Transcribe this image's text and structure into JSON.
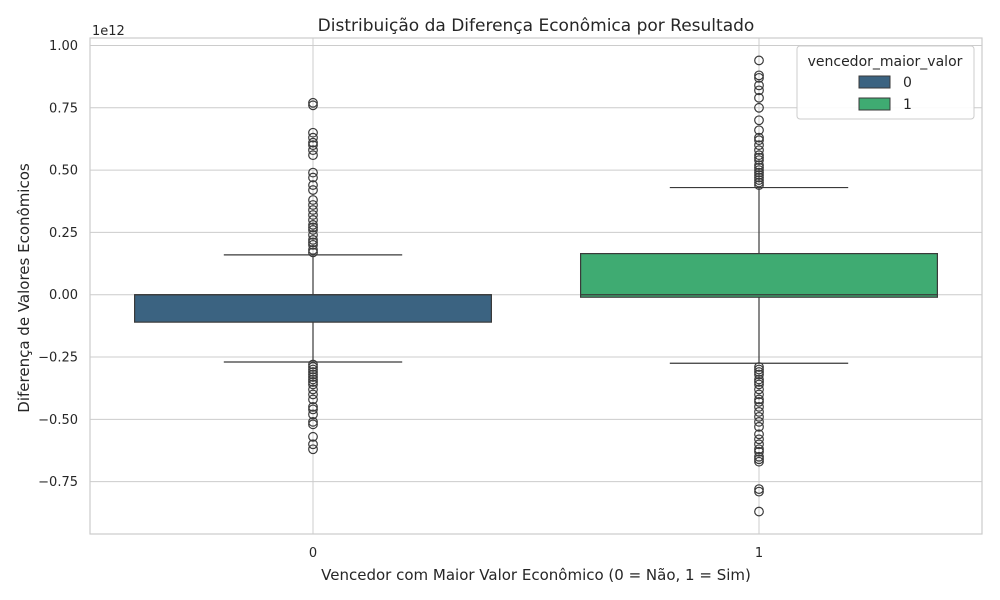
{
  "chart_data": {
    "type": "boxplot",
    "title": "Distribuição da Diferença Econômica por Resultado",
    "xlabel": "Vencedor com Maior Valor Econômico (0 = Não, 1 = Sim)",
    "ylabel": "Diferença de Valores Econômicos",
    "y_offset_label": "1e12",
    "y_scale_note": "values in units of 1e12",
    "categories": [
      "0",
      "1"
    ],
    "ylim": [
      -0.96,
      1.03
    ],
    "yticks": [
      {
        "value": -0.75,
        "label": "−0.75"
      },
      {
        "value": -0.5,
        "label": "−0.50"
      },
      {
        "value": -0.25,
        "label": "−0.25"
      },
      {
        "value": 0.0,
        "label": "0.00"
      },
      {
        "value": 0.25,
        "label": "0.25"
      },
      {
        "value": 0.5,
        "label": "0.50"
      },
      {
        "value": 0.75,
        "label": "0.75"
      },
      {
        "value": 1.0,
        "label": "1.00"
      }
    ],
    "grid": true,
    "legend": {
      "title": "vencedor_maior_valor",
      "placement": "top-right"
    },
    "series": [
      {
        "name": "0",
        "color": "#3b6381",
        "whisker_low": -0.27,
        "q1": -0.11,
        "median": 0.0,
        "q3": 0.0,
        "whisker_high": 0.16,
        "outliers": [
          0.77,
          0.76,
          0.65,
          0.63,
          0.61,
          0.6,
          0.58,
          0.56,
          0.49,
          0.47,
          0.44,
          0.42,
          0.38,
          0.36,
          0.34,
          0.32,
          0.3,
          0.28,
          0.27,
          0.26,
          0.24,
          0.22,
          0.21,
          0.2,
          0.18,
          0.17,
          -0.28,
          -0.29,
          -0.3,
          -0.31,
          -0.32,
          -0.33,
          -0.34,
          -0.35,
          -0.36,
          -0.38,
          -0.4,
          -0.42,
          -0.45,
          -0.46,
          -0.48,
          -0.51,
          -0.52,
          -0.57,
          -0.6,
          -0.62
        ]
      },
      {
        "name": "1",
        "color": "#3fab72",
        "whisker_low": -0.275,
        "q1": -0.01,
        "median": 0.0,
        "q3": 0.165,
        "whisker_high": 0.43,
        "outliers": [
          0.94,
          0.88,
          0.87,
          0.84,
          0.82,
          0.79,
          0.75,
          0.7,
          0.66,
          0.63,
          0.62,
          0.6,
          0.58,
          0.56,
          0.55,
          0.54,
          0.52,
          0.51,
          0.5,
          0.49,
          0.48,
          0.47,
          0.46,
          0.45,
          0.44,
          -0.29,
          -0.3,
          -0.31,
          -0.32,
          -0.34,
          -0.35,
          -0.36,
          -0.38,
          -0.4,
          -0.42,
          -0.43,
          -0.45,
          -0.47,
          -0.49,
          -0.51,
          -0.53,
          -0.56,
          -0.58,
          -0.6,
          -0.62,
          -0.63,
          -0.65,
          -0.66,
          -0.67,
          -0.78,
          -0.79,
          -0.87
        ]
      }
    ]
  }
}
